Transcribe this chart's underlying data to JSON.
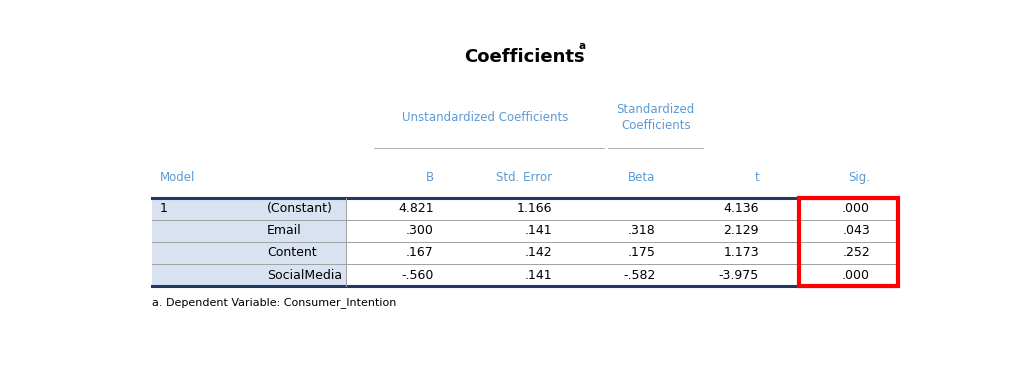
{
  "title": "Coefficients",
  "title_superscript": "a",
  "footnote": "a. Dependent Variable: Consumer_Intention",
  "rows": [
    [
      "1",
      "(Constant)",
      "4.821",
      "1.166",
      "",
      "4.136",
      ".000"
    ],
    [
      "",
      "Email",
      ".300",
      ".141",
      ".318",
      "2.129",
      ".043"
    ],
    [
      "",
      "Content",
      ".167",
      ".142",
      ".175",
      "1.173",
      ".252"
    ],
    [
      "",
      "SocialMedia",
      "-.560",
      ".141",
      "-.582",
      "-3.975",
      ".000"
    ]
  ],
  "header_color": "#5b9bd5",
  "row_label_bg": "#d9e2f0",
  "white_bg": "#ffffff",
  "outer_bg": "#ffffff",
  "table_edge_color": "#1f3864",
  "highlight_box_color": "#ff0000",
  "font_size_title": 13,
  "font_size_header": 8.5,
  "font_size_data": 9,
  "font_size_footnote": 8
}
